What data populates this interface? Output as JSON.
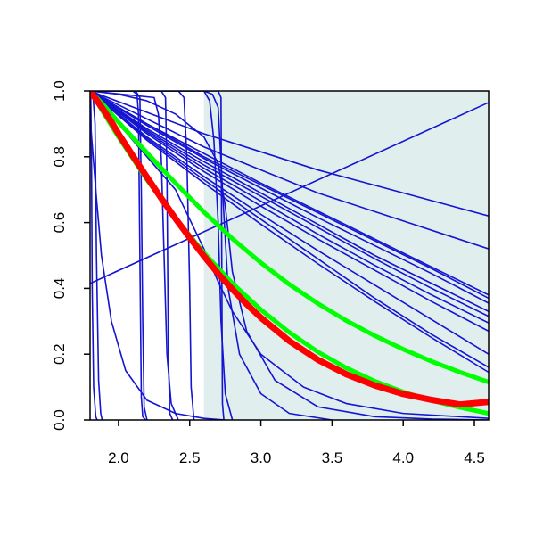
{
  "chart_data": {
    "type": "line",
    "title": "",
    "xlabel": "",
    "ylabel": "",
    "xlim": [
      1.8,
      4.6
    ],
    "ylim": [
      0.0,
      1.0
    ],
    "x_ticks": [
      2.0,
      2.5,
      3.0,
      3.5,
      4.0,
      4.5
    ],
    "x_tick_labels": [
      "2.0",
      "2.5",
      "3.0",
      "3.5",
      "4.0",
      "4.5"
    ],
    "y_ticks": [
      0.0,
      0.2,
      0.4,
      0.6,
      0.8,
      1.0
    ],
    "y_tick_labels": [
      "0.0",
      "0.2",
      "0.4",
      "0.6",
      "0.8",
      "1.0"
    ],
    "grid": false,
    "legend": "none",
    "shaded_region": {
      "x": [
        2.6,
        4.6
      ],
      "y": [
        0.0,
        1.0
      ],
      "color": "#e0eeee"
    },
    "colors": {
      "bundle": "#1414d2",
      "main": "#ff0000",
      "bounds": "#00ff00"
    },
    "series": [
      {
        "x": [
          1.8,
          1.85,
          1.9,
          1.95,
          2.0,
          2.1,
          2.2,
          2.3,
          2.4,
          2.5,
          2.6,
          2.7,
          2.8,
          2.9,
          3.0,
          3.2,
          3.4,
          3.6,
          3.8,
          4.0,
          4.2,
          4.4,
          4.6
        ],
        "y": [
          1.0,
          0.97,
          0.939,
          0.906,
          0.87,
          0.803,
          0.738,
          0.674,
          0.612,
          0.554,
          0.498,
          0.445,
          0.397,
          0.352,
          0.311,
          0.24,
          0.183,
          0.139,
          0.105,
          0.079,
          0.061,
          0.047,
          0.055
        ]
      },
      {
        "x": [
          1.8,
          1.9,
          2.0,
          2.2,
          2.4,
          2.6,
          2.8,
          3.0,
          3.2,
          3.4,
          3.6,
          3.8,
          4.0,
          4.2,
          4.4,
          4.6
        ],
        "y": [
          1.0,
          0.955,
          0.905,
          0.812,
          0.72,
          0.632,
          0.551,
          0.478,
          0.412,
          0.354,
          0.302,
          0.256,
          0.215,
          0.178,
          0.145,
          0.115
        ]
      },
      {
        "x": [
          1.8,
          1.9,
          2.0,
          2.2,
          2.4,
          2.6,
          2.8,
          3.0,
          3.2,
          3.4,
          3.6,
          3.8,
          4.0,
          4.2,
          4.4,
          4.6
        ],
        "y": [
          1.0,
          0.93,
          0.86,
          0.73,
          0.613,
          0.508,
          0.415,
          0.335,
          0.266,
          0.207,
          0.158,
          0.118,
          0.085,
          0.059,
          0.038,
          0.02
        ]
      },
      {
        "x": [
          1.8,
          2.6,
          3.4,
          4.6
        ],
        "y": [
          1.0,
          0.87,
          0.76,
          0.62
        ]
      },
      {
        "x": [
          1.8,
          2.6,
          3.4,
          4.6
        ],
        "y": [
          1.0,
          0.83,
          0.69,
          0.52
        ]
      },
      {
        "x": [
          1.8,
          2.2,
          2.6,
          3.0,
          3.4,
          3.8,
          4.2,
          4.6
        ],
        "y": [
          1.0,
          0.9,
          0.81,
          0.72,
          0.635,
          0.55,
          0.465,
          0.38
        ]
      },
      {
        "x": [
          1.8,
          2.2,
          2.6,
          3.0,
          3.4,
          3.8,
          4.2,
          4.6
        ],
        "y": [
          1.0,
          0.9,
          0.8,
          0.715,
          0.63,
          0.545,
          0.46,
          0.37
        ]
      },
      {
        "x": [
          1.8,
          2.2,
          2.6,
          3.0,
          3.4,
          3.8,
          4.2,
          4.6
        ],
        "y": [
          1.0,
          0.895,
          0.795,
          0.705,
          0.615,
          0.53,
          0.445,
          0.355
        ]
      },
      {
        "x": [
          1.8,
          2.2,
          2.6,
          3.0,
          3.4,
          3.8,
          4.2,
          4.6
        ],
        "y": [
          1.0,
          0.88,
          0.775,
          0.68,
          0.585,
          0.49,
          0.4,
          0.315
        ]
      },
      {
        "x": [
          1.8,
          2.2,
          2.6,
          3.0,
          3.4,
          3.8,
          4.2,
          4.6
        ],
        "y": [
          1.0,
          0.875,
          0.765,
          0.665,
          0.565,
          0.47,
          0.38,
          0.295
        ]
      },
      {
        "x": [
          1.8,
          2.2,
          2.6,
          3.0,
          3.4,
          3.8,
          4.2,
          4.6
        ],
        "y": [
          1.0,
          0.87,
          0.755,
          0.65,
          0.55,
          0.455,
          0.36,
          0.27
        ]
      },
      {
        "x": [
          1.8,
          2.2,
          2.6,
          3.0,
          3.4,
          3.8,
          4.2,
          4.6
        ],
        "y": [
          1.0,
          0.86,
          0.74,
          0.625,
          0.515,
          0.41,
          0.305,
          0.2
        ]
      },
      {
        "x": [
          1.8,
          2.2,
          2.6,
          3.0,
          3.4,
          3.8,
          4.2,
          4.6
        ],
        "y": [
          1.0,
          0.855,
          0.73,
          0.61,
          0.49,
          0.37,
          0.26,
          0.16
        ]
      },
      {
        "x": [
          1.8,
          2.2,
          2.6,
          3.0,
          3.4,
          3.8,
          4.2,
          4.6
        ],
        "y": [
          1.0,
          0.85,
          0.72,
          0.595,
          0.475,
          0.36,
          0.25,
          0.145
        ]
      },
      {
        "x": [
          1.8,
          2.2,
          2.6,
          3.0,
          3.4,
          3.8,
          4.2,
          4.6
        ],
        "y": [
          1.0,
          0.885,
          0.785,
          0.69,
          0.595,
          0.5,
          0.415,
          0.33
        ]
      },
      {
        "x": [
          1.8,
          4.6
        ],
        "y": [
          0.415,
          0.965
        ]
      },
      {
        "x": [
          1.8,
          1.805,
          1.81,
          1.815,
          1.825,
          1.84,
          1.85
        ],
        "y": [
          1.0,
          0.98,
          0.8,
          0.4,
          0.1,
          0.01,
          0.0
        ]
      },
      {
        "x": [
          1.8,
          1.82,
          1.835,
          1.845,
          1.86,
          1.875,
          1.885
        ],
        "y": [
          1.0,
          0.99,
          0.9,
          0.5,
          0.12,
          0.02,
          0.0
        ]
      },
      {
        "x": [
          1.8,
          1.84,
          1.88,
          1.95,
          2.05,
          2.2,
          2.4,
          2.6,
          2.75
        ],
        "y": [
          0.92,
          0.7,
          0.5,
          0.3,
          0.15,
          0.06,
          0.02,
          0.005,
          0.0
        ]
      },
      {
        "x": [
          1.8,
          2.1,
          2.13,
          2.14,
          2.15,
          2.16,
          2.17,
          2.19
        ],
        "y": [
          1.0,
          1.0,
          0.99,
          0.93,
          0.5,
          0.07,
          0.01,
          0.0
        ]
      },
      {
        "x": [
          1.8,
          2.12,
          2.15,
          2.16,
          2.17,
          2.18,
          2.2
        ],
        "y": [
          1.0,
          1.0,
          0.98,
          0.7,
          0.3,
          0.04,
          0.0
        ]
      },
      {
        "x": [
          1.8,
          2.25,
          2.28,
          2.3,
          2.32,
          2.34,
          2.37,
          2.42
        ],
        "y": [
          1.0,
          0.98,
          0.93,
          0.8,
          0.5,
          0.2,
          0.05,
          0.0
        ]
      },
      {
        "x": [
          1.8,
          2.3,
          2.33,
          2.34,
          2.35,
          2.36,
          2.38
        ],
        "y": [
          1.0,
          1.0,
          0.98,
          0.75,
          0.2,
          0.02,
          0.0
        ]
      },
      {
        "x": [
          1.8,
          2.42,
          2.46,
          2.48,
          2.5,
          2.51,
          2.53
        ],
        "y": [
          1.0,
          1.0,
          0.98,
          0.8,
          0.4,
          0.1,
          0.0
        ]
      },
      {
        "x": [
          1.8,
          2.6,
          2.66,
          2.7,
          2.73,
          2.77,
          2.85,
          3.0,
          3.2,
          3.5
        ],
        "y": [
          1.0,
          1.0,
          0.99,
          0.95,
          0.7,
          0.4,
          0.2,
          0.08,
          0.02,
          0.0
        ]
      },
      {
        "x": [
          1.8,
          2.6,
          2.64,
          2.67,
          2.7,
          2.72,
          2.75,
          2.8
        ],
        "y": [
          1.0,
          1.0,
          0.97,
          0.85,
          0.6,
          0.3,
          0.08,
          0.0
        ]
      },
      {
        "x": [
          1.8,
          2.7,
          2.72,
          2.725,
          2.73,
          2.74
        ],
        "y": [
          1.0,
          1.0,
          0.98,
          0.5,
          0.05,
          0.0
        ]
      },
      {
        "x": [
          1.8,
          2.0,
          2.2,
          2.4,
          2.6,
          2.7,
          2.75,
          2.8,
          2.9,
          3.1,
          3.4,
          3.8,
          4.2,
          4.6
        ],
        "y": [
          1.0,
          0.99,
          0.97,
          0.93,
          0.86,
          0.78,
          0.65,
          0.45,
          0.27,
          0.12,
          0.04,
          0.01,
          0.003,
          0.0
        ]
      },
      {
        "x": [
          1.8,
          2.4,
          2.6,
          2.7,
          2.8,
          3.0,
          3.3,
          3.6,
          4.0,
          4.6
        ],
        "y": [
          1.0,
          0.7,
          0.52,
          0.42,
          0.33,
          0.2,
          0.1,
          0.05,
          0.02,
          0.005
        ]
      }
    ]
  }
}
